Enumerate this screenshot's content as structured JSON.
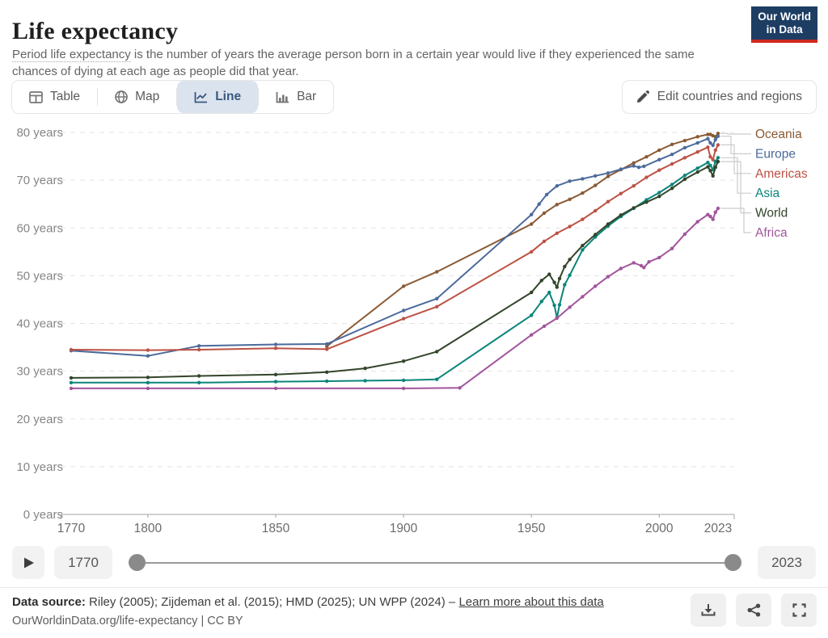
{
  "header": {
    "title": "Life expectancy",
    "subtitle_term": "Period life expectancy",
    "subtitle_rest": " is the number of years the average person born in a certain year would live if they experienced the same chances of dying at each age as people did that year.",
    "logo_line1": "Our World",
    "logo_line2": "in Data",
    "brand_navy": "#1d3d63",
    "brand_red": "#cf2a20"
  },
  "toolbar": {
    "tabs": [
      {
        "label": "Table",
        "active": false
      },
      {
        "label": "Map",
        "active": false
      },
      {
        "label": "Line",
        "active": true
      },
      {
        "label": "Bar",
        "active": false
      }
    ],
    "edit_button_label": "Edit countries and regions"
  },
  "chart_data": {
    "type": "line",
    "title": "Life expectancy",
    "xlabel": "",
    "ylabel": "years",
    "xlim": [
      1766,
      2028
    ],
    "ylim": [
      0,
      80
    ],
    "x_ticks": [
      1770,
      1800,
      1850,
      1900,
      1950,
      2000,
      2023
    ],
    "y_ticks": [
      0,
      10,
      20,
      30,
      40,
      50,
      60,
      70,
      80
    ],
    "y_tick_suffix": " years",
    "grid": true,
    "legend_position": "right",
    "legend_order": [
      "Oceania",
      "Europe",
      "Americas",
      "Asia",
      "World",
      "Africa"
    ],
    "series": [
      {
        "name": "Oceania",
        "color": "#8a5a34",
        "points": [
          [
            1870,
            35.2
          ],
          [
            1900,
            47.8
          ],
          [
            1913,
            50.8
          ],
          [
            1950,
            60.8
          ],
          [
            1955,
            63.1
          ],
          [
            1960,
            64.9
          ],
          [
            1965,
            66.0
          ],
          [
            1970,
            67.3
          ],
          [
            1975,
            68.9
          ],
          [
            1980,
            70.8
          ],
          [
            1985,
            72.2
          ],
          [
            1990,
            73.6
          ],
          [
            1995,
            74.9
          ],
          [
            2000,
            76.3
          ],
          [
            2005,
            77.5
          ],
          [
            2010,
            78.3
          ],
          [
            2015,
            79.1
          ],
          [
            2019,
            79.6
          ],
          [
            2020,
            79.6
          ],
          [
            2021,
            79.3
          ],
          [
            2022,
            79.1
          ],
          [
            2023,
            79.8
          ]
        ]
      },
      {
        "name": "Europe",
        "color": "#4c6a9c",
        "points": [
          [
            1770,
            34.3
          ],
          [
            1800,
            33.2
          ],
          [
            1820,
            35.3
          ],
          [
            1850,
            35.6
          ],
          [
            1870,
            35.7
          ],
          [
            1900,
            42.7
          ],
          [
            1913,
            45.2
          ],
          [
            1950,
            62.8
          ],
          [
            1953,
            65.0
          ],
          [
            1956,
            67.0
          ],
          [
            1960,
            68.8
          ],
          [
            1965,
            69.8
          ],
          [
            1970,
            70.3
          ],
          [
            1975,
            70.9
          ],
          [
            1980,
            71.5
          ],
          [
            1985,
            72.3
          ],
          [
            1990,
            73.0
          ],
          [
            1992,
            72.7
          ],
          [
            1994,
            72.9
          ],
          [
            2000,
            74.3
          ],
          [
            2005,
            75.4
          ],
          [
            2010,
            76.8
          ],
          [
            2015,
            77.8
          ],
          [
            2019,
            78.7
          ],
          [
            2020,
            77.8
          ],
          [
            2021,
            77.3
          ],
          [
            2022,
            78.5
          ],
          [
            2023,
            79.2
          ]
        ]
      },
      {
        "name": "Americas",
        "color": "#bc5245",
        "points": [
          [
            1770,
            34.5
          ],
          [
            1800,
            34.4
          ],
          [
            1820,
            34.5
          ],
          [
            1850,
            34.8
          ],
          [
            1870,
            34.6
          ],
          [
            1900,
            41.0
          ],
          [
            1913,
            43.5
          ],
          [
            1950,
            55.0
          ],
          [
            1955,
            57.2
          ],
          [
            1960,
            58.9
          ],
          [
            1965,
            60.3
          ],
          [
            1970,
            61.8
          ],
          [
            1975,
            63.6
          ],
          [
            1980,
            65.5
          ],
          [
            1985,
            67.2
          ],
          [
            1990,
            68.8
          ],
          [
            1995,
            70.6
          ],
          [
            2000,
            72.1
          ],
          [
            2005,
            73.4
          ],
          [
            2010,
            74.7
          ],
          [
            2015,
            75.9
          ],
          [
            2019,
            76.9
          ],
          [
            2020,
            74.9
          ],
          [
            2021,
            74.3
          ],
          [
            2022,
            76.3
          ],
          [
            2023,
            77.4
          ]
        ]
      },
      {
        "name": "Asia",
        "color": "#0b857a",
        "points": [
          [
            1770,
            27.6
          ],
          [
            1800,
            27.6
          ],
          [
            1820,
            27.6
          ],
          [
            1850,
            27.8
          ],
          [
            1870,
            27.9
          ],
          [
            1885,
            28.0
          ],
          [
            1900,
            28.1
          ],
          [
            1913,
            28.3
          ],
          [
            1950,
            41.7
          ],
          [
            1954,
            44.6
          ],
          [
            1957,
            46.5
          ],
          [
            1959,
            43.8
          ],
          [
            1960,
            41.2
          ],
          [
            1961,
            43.9
          ],
          [
            1963,
            48.1
          ],
          [
            1965,
            50.1
          ],
          [
            1970,
            55.4
          ],
          [
            1975,
            58.1
          ],
          [
            1980,
            60.4
          ],
          [
            1985,
            62.4
          ],
          [
            1990,
            64.1
          ],
          [
            1995,
            65.9
          ],
          [
            2000,
            67.4
          ],
          [
            2005,
            69.1
          ],
          [
            2010,
            71.0
          ],
          [
            2015,
            72.5
          ],
          [
            2019,
            73.7
          ],
          [
            2020,
            73.1
          ],
          [
            2021,
            72.2
          ],
          [
            2022,
            73.9
          ],
          [
            2023,
            74.7
          ]
        ]
      },
      {
        "name": "World",
        "color": "#33452b",
        "points": [
          [
            1770,
            28.6
          ],
          [
            1800,
            28.7
          ],
          [
            1820,
            29.0
          ],
          [
            1850,
            29.3
          ],
          [
            1870,
            29.8
          ],
          [
            1885,
            30.6
          ],
          [
            1900,
            32.1
          ],
          [
            1913,
            34.1
          ],
          [
            1950,
            46.5
          ],
          [
            1954,
            49.0
          ],
          [
            1957,
            50.3
          ],
          [
            1959,
            48.6
          ],
          [
            1960,
            47.6
          ],
          [
            1961,
            49.4
          ],
          [
            1963,
            51.9
          ],
          [
            1965,
            53.4
          ],
          [
            1970,
            56.3
          ],
          [
            1975,
            58.6
          ],
          [
            1980,
            60.8
          ],
          [
            1985,
            62.7
          ],
          [
            1990,
            64.2
          ],
          [
            1995,
            65.4
          ],
          [
            2000,
            66.6
          ],
          [
            2005,
            68.3
          ],
          [
            2010,
            70.2
          ],
          [
            2015,
            71.7
          ],
          [
            2019,
            72.8
          ],
          [
            2020,
            72.0
          ],
          [
            2021,
            70.9
          ],
          [
            2022,
            72.7
          ],
          [
            2023,
            73.9
          ]
        ]
      },
      {
        "name": "Africa",
        "color": "#a2559c",
        "points": [
          [
            1770,
            26.4
          ],
          [
            1800,
            26.4
          ],
          [
            1850,
            26.4
          ],
          [
            1900,
            26.4
          ],
          [
            1922,
            26.5
          ],
          [
            1950,
            37.6
          ],
          [
            1955,
            39.4
          ],
          [
            1960,
            41.1
          ],
          [
            1965,
            43.4
          ],
          [
            1970,
            45.6
          ],
          [
            1975,
            47.8
          ],
          [
            1980,
            49.8
          ],
          [
            1985,
            51.5
          ],
          [
            1990,
            52.7
          ],
          [
            1993,
            52.1
          ],
          [
            1994,
            51.7
          ],
          [
            1996,
            52.9
          ],
          [
            2000,
            53.8
          ],
          [
            2005,
            55.7
          ],
          [
            2010,
            58.7
          ],
          [
            2015,
            61.3
          ],
          [
            2019,
            62.8
          ],
          [
            2020,
            62.4
          ],
          [
            2021,
            61.8
          ],
          [
            2022,
            63.3
          ],
          [
            2023,
            64.1
          ]
        ]
      }
    ]
  },
  "timeline": {
    "start_year": "1770",
    "end_year": "2023"
  },
  "footer": {
    "source_prefix": "Data source:",
    "source_text": " Riley (2005); Zijdeman et al. (2015); HMD (2025); UN WPP (2024) – ",
    "source_link": "Learn more about this data",
    "attribution": "OurWorldinData.org/life-expectancy | CC BY"
  }
}
